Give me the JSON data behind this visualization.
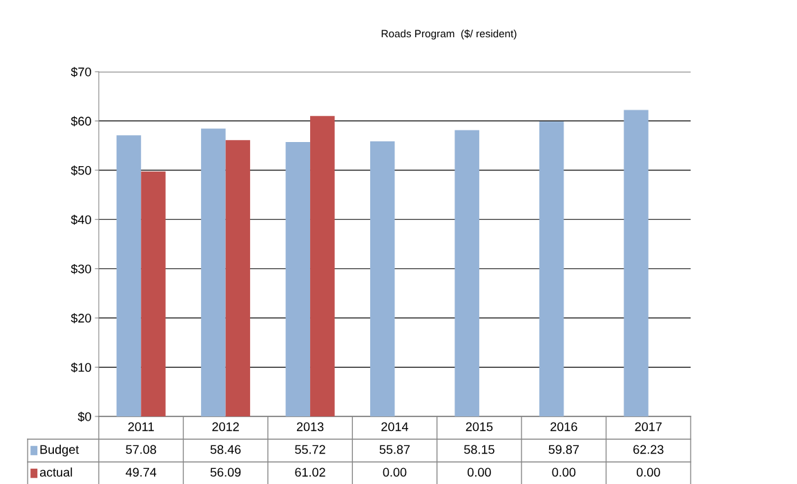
{
  "chart_data": {
    "type": "bar",
    "title": "Roads Program  ($/ resident)",
    "categories": [
      "2011",
      "2012",
      "2013",
      "2014",
      "2015",
      "2016",
      "2017"
    ],
    "series": [
      {
        "name": "Budget",
        "color": "#95b3d7",
        "values": [
          57.08,
          58.46,
          55.72,
          55.87,
          58.15,
          59.87,
          62.23
        ],
        "value_labels": [
          "57.08",
          "58.46",
          "55.72",
          "55.87",
          "58.15",
          "59.87",
          "62.23"
        ]
      },
      {
        "name": "actual",
        "color": "#c0504d",
        "values": [
          49.74,
          56.09,
          61.02,
          0,
          0,
          0,
          0
        ],
        "value_labels": [
          "49.74",
          "56.09",
          "61.02",
          "0.00",
          "0.00",
          "0.00",
          "0.00"
        ]
      }
    ],
    "ylim": [
      0,
      70
    ],
    "yticks": [
      {
        "value": 0,
        "label": "$0"
      },
      {
        "value": 10,
        "label": "$10"
      },
      {
        "value": 20,
        "label": "$20"
      },
      {
        "value": 30,
        "label": "$30"
      },
      {
        "value": 40,
        "label": "$40"
      },
      {
        "value": 50,
        "label": "$50"
      },
      {
        "value": 60,
        "label": "$60"
      },
      {
        "value": 70,
        "label": "$70"
      }
    ],
    "grid": "y",
    "legend": "bottom"
  }
}
